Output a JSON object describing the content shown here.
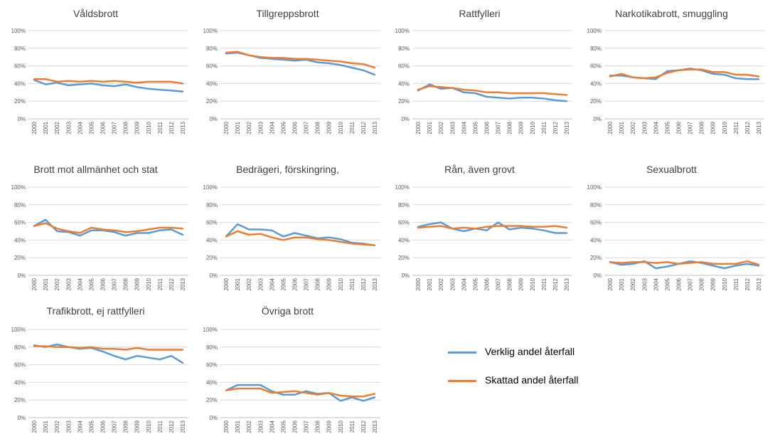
{
  "colors": {
    "actual": "#5b9bd5",
    "estimated": "#ed7d31",
    "grid": "#d9d9d9",
    "axis": "#595959",
    "title": "#404040"
  },
  "legend": {
    "actual": "Verklig andel återfall",
    "estimated": "Skattad andel återfall"
  },
  "chart_data": [
    {
      "type": "line",
      "title": "Våldsbrott",
      "x": [
        "2000",
        "2001",
        "2002",
        "2003",
        "2004",
        "2005",
        "2006",
        "2007",
        "2008",
        "2009",
        "2010",
        "2011",
        "2012",
        "2013"
      ],
      "yticks": [
        "0%",
        "20%",
        "40%",
        "60%",
        "80%",
        "100%"
      ],
      "ylim": [
        0,
        100
      ],
      "series": [
        {
          "name": "Verklig andel återfall",
          "key": "actual",
          "values": [
            44,
            39,
            41,
            38,
            39,
            40,
            38,
            37,
            39,
            36,
            34,
            33,
            32,
            31
          ]
        },
        {
          "name": "Skattad andel återfall",
          "key": "estimated",
          "values": [
            45,
            45,
            42,
            43,
            42,
            43,
            42,
            43,
            42,
            41,
            42,
            42,
            42,
            40
          ]
        }
      ]
    },
    {
      "type": "line",
      "title": "Tillgreppsbrott",
      "x": [
        "2000",
        "2001",
        "2002",
        "2003",
        "2004",
        "2005",
        "2006",
        "2007",
        "2008",
        "2009",
        "2010",
        "2011",
        "2012",
        "2013"
      ],
      "yticks": [
        "0%",
        "20%",
        "40%",
        "60%",
        "80%",
        "100%"
      ],
      "ylim": [
        0,
        100
      ],
      "series": [
        {
          "name": "Verklig andel återfall",
          "key": "actual",
          "values": [
            74,
            75,
            72,
            69,
            68,
            67,
            66,
            67,
            64,
            63,
            61,
            58,
            55,
            50
          ]
        },
        {
          "name": "Skattad andel återfall",
          "key": "estimated",
          "values": [
            75,
            76,
            72,
            70,
            69,
            69,
            68,
            68,
            67,
            66,
            65,
            63,
            62,
            58
          ]
        }
      ]
    },
    {
      "type": "line",
      "title": "Rattfylleri",
      "x": [
        "2000",
        "2001",
        "2002",
        "2003",
        "2004",
        "2005",
        "2006",
        "2007",
        "2008",
        "2009",
        "2010",
        "2011",
        "2012",
        "2013"
      ],
      "yticks": [
        "0%",
        "20%",
        "40%",
        "60%",
        "80%",
        "100%"
      ],
      "ylim": [
        0,
        100
      ],
      "series": [
        {
          "name": "Verklig andel återfall",
          "key": "actual",
          "values": [
            32,
            39,
            34,
            35,
            30,
            29,
            25,
            24,
            23,
            24,
            24,
            23,
            21,
            20
          ]
        },
        {
          "name": "Skattad andel återfall",
          "key": "estimated",
          "values": [
            33,
            37,
            36,
            35,
            33,
            32,
            30,
            30,
            29,
            29,
            29,
            29,
            28,
            27
          ]
        }
      ]
    },
    {
      "type": "line",
      "title": "Narkotikabrott, smuggling",
      "x": [
        "2000",
        "2001",
        "2002",
        "2003",
        "2004",
        "2005",
        "2006",
        "2007",
        "2008",
        "2009",
        "2010",
        "2011",
        "2012",
        "2013"
      ],
      "yticks": [
        "0%",
        "20%",
        "40%",
        "60%",
        "80%",
        "100%"
      ],
      "ylim": [
        0,
        100
      ],
      "series": [
        {
          "name": "Verklig andel återfall",
          "key": "actual",
          "values": [
            49,
            49,
            47,
            46,
            45,
            54,
            55,
            57,
            55,
            51,
            50,
            46,
            45,
            45
          ]
        },
        {
          "name": "Skattad andel återfall",
          "key": "estimated",
          "values": [
            48,
            51,
            47,
            46,
            47,
            52,
            55,
            56,
            56,
            53,
            53,
            50,
            50,
            48
          ]
        }
      ]
    },
    {
      "type": "line",
      "title": "Brott mot allmänhet och stat",
      "x": [
        "2000",
        "2001",
        "2002",
        "2003",
        "2004",
        "2005",
        "2006",
        "2007",
        "2008",
        "2009",
        "2010",
        "2011",
        "2012",
        "2013"
      ],
      "yticks": [
        "0%",
        "20%",
        "40%",
        "60%",
        "80%",
        "100%"
      ],
      "ylim": [
        0,
        100
      ],
      "series": [
        {
          "name": "Verklig andel återfall",
          "key": "actual",
          "values": [
            56,
            63,
            50,
            49,
            45,
            51,
            51,
            49,
            45,
            48,
            48,
            51,
            52,
            46
          ]
        },
        {
          "name": "Skattad andel återfall",
          "key": "estimated",
          "values": [
            56,
            59,
            53,
            50,
            48,
            54,
            52,
            51,
            49,
            50,
            52,
            54,
            54,
            53
          ]
        }
      ]
    },
    {
      "type": "line",
      "title": "Bedrägeri, förskingring,",
      "x": [
        "2000",
        "2001",
        "2002",
        "2003",
        "2004",
        "2005",
        "2006",
        "2007",
        "2008",
        "2009",
        "2010",
        "2011",
        "2012",
        "2013"
      ],
      "yticks": [
        "0%",
        "20%",
        "40%",
        "60%",
        "80%",
        "100%"
      ],
      "ylim": [
        0,
        100
      ],
      "series": [
        {
          "name": "Verklig andel återfall",
          "key": "actual",
          "values": [
            44,
            58,
            52,
            52,
            51,
            44,
            48,
            45,
            42,
            43,
            41,
            37,
            36,
            34
          ]
        },
        {
          "name": "Skattad andel återfall",
          "key": "estimated",
          "values": [
            44,
            50,
            46,
            47,
            43,
            40,
            43,
            43,
            41,
            40,
            38,
            36,
            35,
            34
          ]
        }
      ]
    },
    {
      "type": "line",
      "title": "Rån, även grovt",
      "x": [
        "2000",
        "2001",
        "2002",
        "2003",
        "2004",
        "2005",
        "2006",
        "2007",
        "2008",
        "2009",
        "2010",
        "2011",
        "2012",
        "2013"
      ],
      "yticks": [
        "0%",
        "20%",
        "40%",
        "60%",
        "80%",
        "100%"
      ],
      "ylim": [
        0,
        100
      ],
      "series": [
        {
          "name": "Verklig andel återfall",
          "key": "actual",
          "values": [
            55,
            58,
            60,
            53,
            50,
            53,
            51,
            60,
            52,
            54,
            53,
            51,
            48,
            48
          ]
        },
        {
          "name": "Skattad andel återfall",
          "key": "estimated",
          "values": [
            54,
            55,
            56,
            53,
            54,
            53,
            55,
            56,
            56,
            56,
            55,
            55,
            56,
            54
          ]
        }
      ]
    },
    {
      "type": "line",
      "title": "Sexualbrott",
      "x": [
        "2000",
        "2001",
        "2002",
        "2003",
        "2004",
        "2005",
        "2006",
        "2007",
        "2008",
        "2009",
        "2010",
        "2011",
        "2012",
        "2013"
      ],
      "yticks": [
        "0%",
        "20%",
        "40%",
        "60%",
        "80%",
        "100%"
      ],
      "ylim": [
        0,
        100
      ],
      "series": [
        {
          "name": "Verklig andel återfall",
          "key": "actual",
          "values": [
            15,
            12,
            13,
            16,
            8,
            10,
            13,
            16,
            14,
            11,
            8,
            11,
            13,
            11
          ]
        },
        {
          "name": "Skattad andel återfall",
          "key": "estimated",
          "values": [
            15,
            14,
            15,
            15,
            14,
            15,
            13,
            14,
            15,
            13,
            13,
            13,
            16,
            12
          ]
        }
      ]
    },
    {
      "type": "line",
      "title": "Trafikbrott, ej rattfylleri",
      "x": [
        "2000",
        "2001",
        "2002",
        "2003",
        "2004",
        "2005",
        "2006",
        "2007",
        "2008",
        "2009",
        "2010",
        "2011",
        "2012",
        "2013"
      ],
      "yticks": [
        "0%",
        "20%",
        "40%",
        "60%",
        "80%",
        "100%"
      ],
      "ylim": [
        0,
        100
      ],
      "series": [
        {
          "name": "Verklig andel återfall",
          "key": "actual",
          "values": [
            82,
            80,
            83,
            80,
            78,
            79,
            75,
            70,
            66,
            70,
            68,
            66,
            70,
            62
          ]
        },
        {
          "name": "Skattad andel återfall",
          "key": "estimated",
          "values": [
            81,
            81,
            80,
            80,
            79,
            80,
            78,
            78,
            77,
            79,
            77,
            77,
            77,
            77
          ]
        }
      ]
    },
    {
      "type": "line",
      "title": "Övriga brott",
      "x": [
        "2000",
        "2001",
        "2002",
        "2003",
        "2004",
        "2005",
        "2006",
        "2007",
        "2008",
        "2009",
        "2010",
        "2011",
        "2012",
        "2013"
      ],
      "yticks": [
        "0%",
        "20%",
        "40%",
        "60%",
        "80%",
        "100%"
      ],
      "ylim": [
        0,
        100
      ],
      "series": [
        {
          "name": "Verklig andel återfall",
          "key": "actual",
          "values": [
            31,
            37,
            37,
            37,
            30,
            26,
            26,
            30,
            27,
            28,
            19,
            23,
            19,
            23
          ]
        },
        {
          "name": "Skattad andel återfall",
          "key": "estimated",
          "values": [
            31,
            33,
            33,
            33,
            28,
            29,
            30,
            28,
            26,
            28,
            25,
            24,
            24,
            27
          ]
        }
      ]
    }
  ]
}
